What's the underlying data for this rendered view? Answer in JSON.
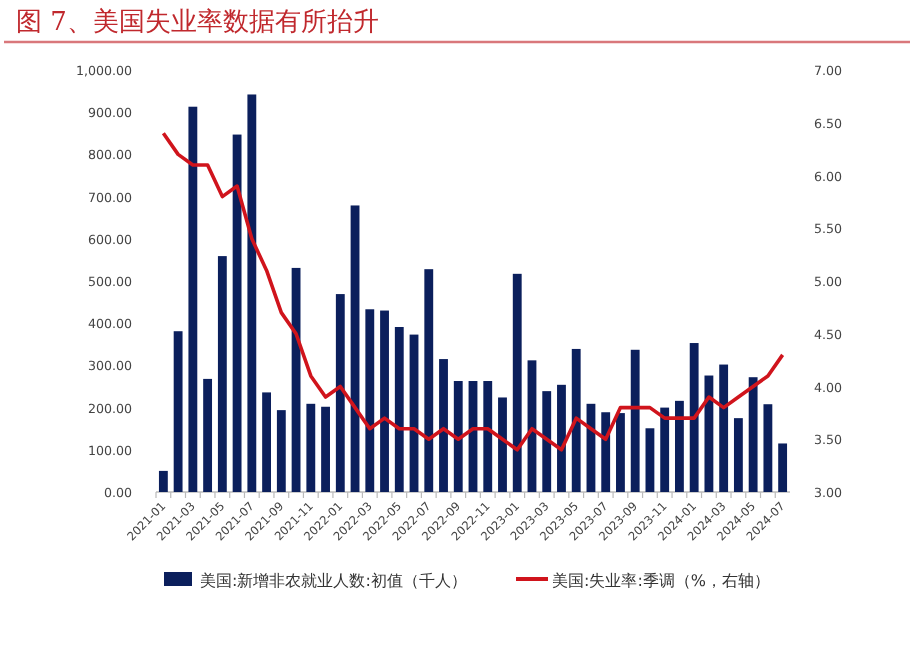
{
  "chart_data": {
    "type": "bar",
    "title": "图 7、美国失业率数据有所抬升",
    "categories": [
      "2021-01",
      null,
      "2021-03",
      null,
      "2021-05",
      null,
      "2021-07",
      null,
      "2021-09",
      null,
      "2021-11",
      null,
      "2022-01",
      null,
      "2022-03",
      null,
      "2022-05",
      null,
      "2022-07",
      null,
      "2022-09",
      null,
      "2022-11",
      null,
      "2023-01",
      null,
      "2023-03",
      null,
      "2023-05",
      null,
      "2023-07",
      null,
      "2023-09",
      null,
      "2023-11",
      null,
      "2024-01",
      null,
      "2024-03",
      null,
      "2024-05",
      null,
      "2024-07"
    ],
    "series": [
      {
        "name": "美国:新增非农就业人数:初值（千人）",
        "color": "#0b1f5c",
        "values": [
          50,
          381,
          913,
          268,
          559,
          847,
          942,
          236,
          194,
          531,
          209,
          202,
          469,
          679,
          433,
          430,
          391,
          373,
          528,
          315,
          263,
          263,
          263,
          224,
          517,
          312,
          239,
          254,
          339,
          209,
          189,
          187,
          337,
          151,
          200,
          216,
          353,
          276,
          302,
          175,
          272,
          208,
          115
        ]
      },
      {
        "name": "美国:失业率:季调（%，右轴）",
        "type": "line",
        "axis": "y2",
        "color": "#d0141c",
        "values": [
          6.4,
          6.2,
          6.1,
          6.1,
          5.8,
          5.9,
          5.4,
          5.1,
          4.7,
          4.5,
          4.1,
          3.9,
          4.0,
          3.8,
          3.6,
          3.7,
          3.6,
          3.6,
          3.5,
          3.6,
          3.5,
          3.6,
          3.6,
          3.5,
          3.4,
          3.6,
          3.5,
          3.4,
          3.7,
          3.6,
          3.5,
          3.8,
          3.8,
          3.8,
          3.7,
          3.7,
          3.7,
          3.9,
          3.8,
          3.9,
          4.0,
          4.1,
          4.3
        ]
      }
    ],
    "ylim": [
      0,
      1000
    ],
    "yticks": [
      {
        "value": 0,
        "label": "0.00"
      },
      {
        "value": 100,
        "label": "100.00"
      },
      {
        "value": 200,
        "label": "200.00"
      },
      {
        "value": 300,
        "label": "300.00"
      },
      {
        "value": 400,
        "label": "400.00"
      },
      {
        "value": 500,
        "label": "500.00"
      },
      {
        "value": 600,
        "label": "600.00"
      },
      {
        "value": 700,
        "label": "700.00"
      },
      {
        "value": 800,
        "label": "800.00"
      },
      {
        "value": 900,
        "label": "900.00"
      },
      {
        "value": 1000,
        "label": "1,000.00"
      }
    ],
    "y2lim": [
      3,
      7
    ],
    "y2ticks": [
      {
        "value": 3,
        "label": "3.00"
      },
      {
        "value": 3.5,
        "label": "3.50"
      },
      {
        "value": 4,
        "label": "4.00"
      },
      {
        "value": 4.5,
        "label": "4.50"
      },
      {
        "value": 5,
        "label": "5.00"
      },
      {
        "value": 5.5,
        "label": "5.50"
      },
      {
        "value": 6,
        "label": "6.00"
      },
      {
        "value": 6.5,
        "label": "6.50"
      },
      {
        "value": 7,
        "label": "7.00"
      }
    ],
    "grid": false,
    "legend": "bottom"
  }
}
